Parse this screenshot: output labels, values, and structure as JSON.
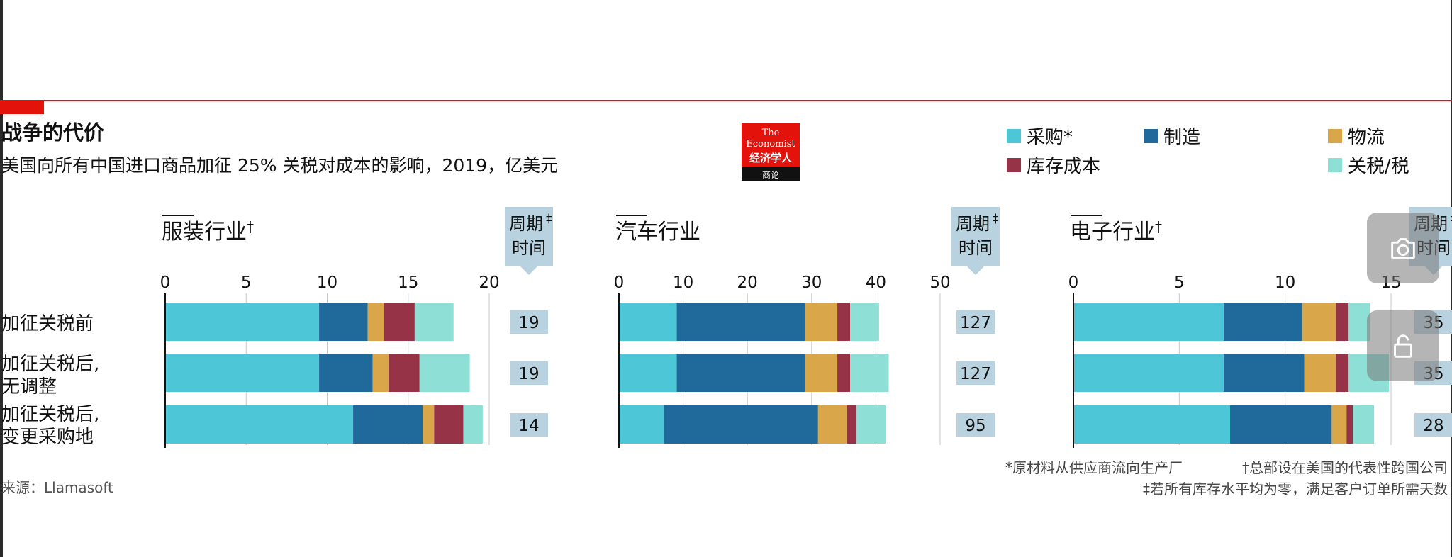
{
  "title": "战争的代价",
  "subtitle": "美国向所有中国进口商品加征 25% 关税对成本的影响，2019，亿美元",
  "logo": {
    "line1": "The",
    "line2": "Economist",
    "line3": "经济学人",
    "line4": "商论",
    "color": "#e3120b"
  },
  "legend": [
    {
      "label": "采购*",
      "color": "#4dc7d7"
    },
    {
      "label": "制造",
      "color": "#1f6a9a"
    },
    {
      "label": "物流",
      "color": "#d9a74a"
    },
    {
      "label": "库存成本",
      "color": "#973347"
    },
    {
      "label": "关税/税",
      "color": "#8ee0d6"
    }
  ],
  "row_labels": [
    [
      "加征关税前"
    ],
    [
      "加征关税后,",
      "无调整"
    ],
    [
      "加征关税后,",
      "变更采购地"
    ]
  ],
  "cycle_header": {
    "line1": "周期",
    "mark": "‡",
    "line2": "时间"
  },
  "chart_data": [
    {
      "type": "bar",
      "orientation": "horizontal",
      "stacked": true,
      "title": "服装行业",
      "title_mark": "†",
      "categories": [
        "加征关税前",
        "加征关税后,无调整",
        "加征关税后,变更采购地"
      ],
      "xlim": [
        0,
        20
      ],
      "ticks": [
        0,
        5,
        10,
        15,
        20
      ],
      "series": [
        {
          "name": "采购*",
          "values": [
            9.5,
            9.5,
            11.6
          ]
        },
        {
          "name": "制造",
          "values": [
            3.0,
            3.3,
            4.3
          ]
        },
        {
          "name": "物流",
          "values": [
            1.0,
            1.0,
            0.7
          ]
        },
        {
          "name": "库存成本",
          "values": [
            1.9,
            1.9,
            1.8
          ]
        },
        {
          "name": "关税/税",
          "values": [
            2.4,
            3.1,
            1.2
          ]
        }
      ],
      "cycle_time": [
        19,
        19,
        14
      ]
    },
    {
      "type": "bar",
      "orientation": "horizontal",
      "stacked": true,
      "title": "汽车行业",
      "title_mark": "",
      "categories": [
        "加征关税前",
        "加征关税后,无调整",
        "加征关税后,变更采购地"
      ],
      "xlim": [
        0,
        50
      ],
      "ticks": [
        0,
        10,
        20,
        30,
        40,
        50
      ],
      "series": [
        {
          "name": "采购*",
          "values": [
            9,
            9,
            7
          ]
        },
        {
          "name": "制造",
          "values": [
            20,
            20,
            24
          ]
        },
        {
          "name": "物流",
          "values": [
            5,
            5,
            4.5
          ]
        },
        {
          "name": "库存成本",
          "values": [
            2,
            2,
            1.5
          ]
        },
        {
          "name": "关税/税",
          "values": [
            4.5,
            6,
            4.5
          ]
        }
      ],
      "cycle_time": [
        127,
        127,
        95
      ]
    },
    {
      "type": "bar",
      "orientation": "horizontal",
      "stacked": true,
      "title": "电子行业",
      "title_mark": "†",
      "categories": [
        "加征关税前",
        "加征关税后,无调整",
        "加征关税后,变更采购地"
      ],
      "xlim": [
        0,
        15
      ],
      "ticks": [
        0,
        5,
        10,
        15
      ],
      "series": [
        {
          "name": "采购*",
          "values": [
            7.1,
            7.1,
            7.4
          ]
        },
        {
          "name": "制造",
          "values": [
            3.7,
            3.8,
            4.8
          ]
        },
        {
          "name": "物流",
          "values": [
            1.6,
            1.5,
            0.7
          ]
        },
        {
          "name": "库存成本",
          "values": [
            0.6,
            0.6,
            0.3
          ]
        },
        {
          "name": "关税/税",
          "values": [
            1.0,
            1.9,
            1.0
          ]
        }
      ],
      "cycle_time": [
        35,
        35,
        28
      ]
    }
  ],
  "footnotes": {
    "note1": "*原材料从供应商流向生产厂",
    "note2": "†总部设在美国的代表性跨国公司",
    "note3": "‡若所有库存水平均为零，满足客户订单所需天数"
  },
  "source": "来源：Llamasoft",
  "overlay": {
    "camera": "camera-icon",
    "lock": "lock-icon"
  }
}
